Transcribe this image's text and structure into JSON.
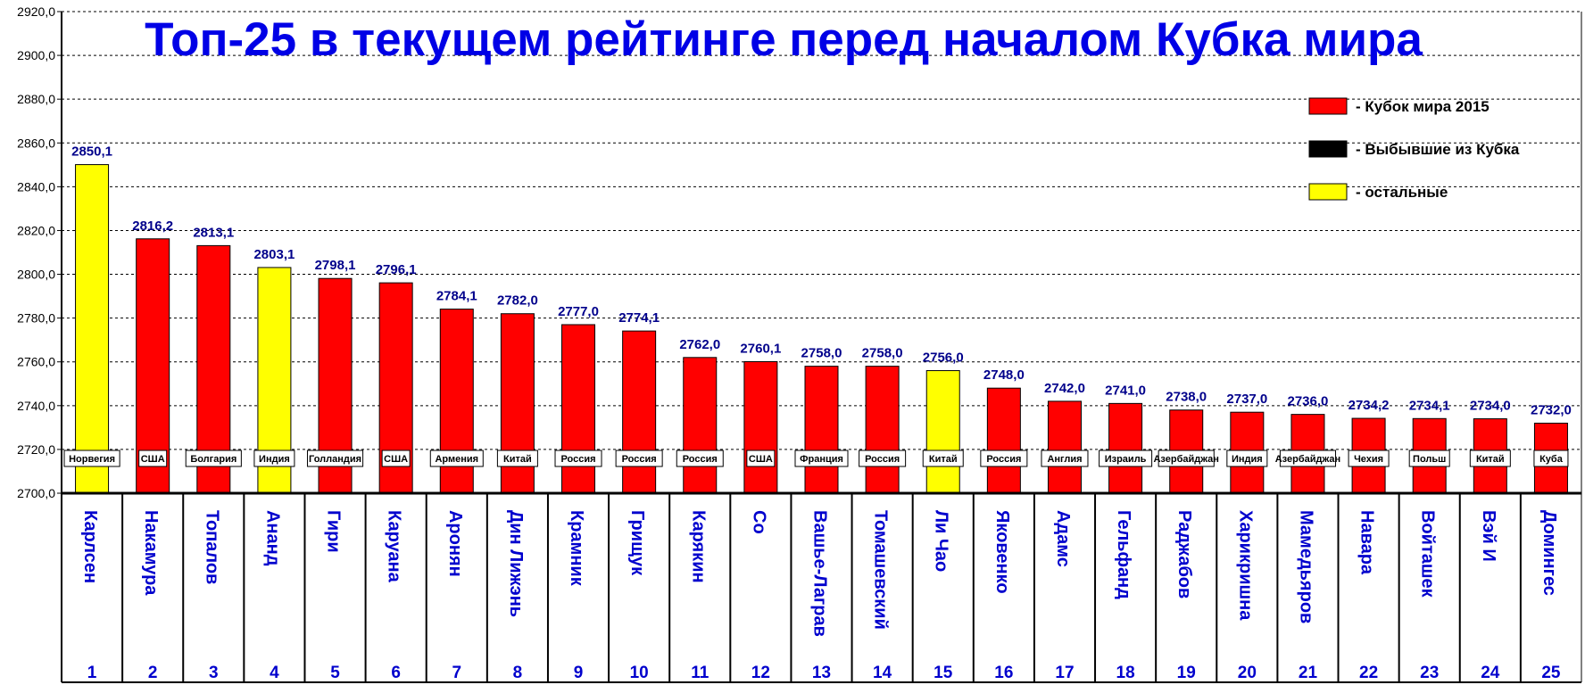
{
  "chart_data": {
    "type": "bar",
    "title": "Топ-25 в текущем рейтинге перед началом Кубка мира",
    "ylim": [
      2700,
      2920
    ],
    "ytick_step": 20,
    "y_ticks": [
      "2700,0",
      "2720,0",
      "2740,0",
      "2760,0",
      "2780,0",
      "2800,0",
      "2820,0",
      "2840,0",
      "2860,0",
      "2880,0",
      "2900,0",
      "2920,0"
    ],
    "grid": true,
    "legend_position": "top-right",
    "legend": [
      {
        "label": "- Кубок мира 2015",
        "color": "#ff0000"
      },
      {
        "label": "- Выбывшие из Кубка",
        "color": "#000000"
      },
      {
        "label": "- остальные",
        "color": "#ffff00"
      }
    ],
    "bars": [
      {
        "rank": "1",
        "name": "Карлсен",
        "country": "Норвегия",
        "value": 2850.1,
        "label": "2850,1",
        "color": "#ffff00"
      },
      {
        "rank": "2",
        "name": "Накамура",
        "country": "США",
        "value": 2816.2,
        "label": "2816,2",
        "color": "#ff0000"
      },
      {
        "rank": "3",
        "name": "Топалов",
        "country": "Болгария",
        "value": 2813.1,
        "label": "2813,1",
        "color": "#ff0000"
      },
      {
        "rank": "4",
        "name": "Ананд",
        "country": "Индия",
        "value": 2803.1,
        "label": "2803,1",
        "color": "#ffff00"
      },
      {
        "rank": "5",
        "name": "Гири",
        "country": "Голландия",
        "value": 2798.1,
        "label": "2798,1",
        "color": "#ff0000"
      },
      {
        "rank": "6",
        "name": "Каруана",
        "country": "США",
        "value": 2796.1,
        "label": "2796,1",
        "color": "#ff0000"
      },
      {
        "rank": "7",
        "name": "Аронян",
        "country": "Армения",
        "value": 2784.1,
        "label": "2784,1",
        "color": "#ff0000"
      },
      {
        "rank": "8",
        "name": "Дин Лижэнь",
        "country": "Китай",
        "value": 2782.0,
        "label": "2782,0",
        "color": "#ff0000"
      },
      {
        "rank": "9",
        "name": "Крамник",
        "country": "Россия",
        "value": 2777.0,
        "label": "2777,0",
        "color": "#ff0000"
      },
      {
        "rank": "10",
        "name": "Грищук",
        "country": "Россия",
        "value": 2774.1,
        "label": "2774,1",
        "color": "#ff0000"
      },
      {
        "rank": "11",
        "name": "Карякин",
        "country": "Россия",
        "value": 2762.0,
        "label": "2762,0",
        "color": "#ff0000"
      },
      {
        "rank": "12",
        "name": "Со",
        "country": "США",
        "value": 2760.1,
        "label": "2760,1",
        "color": "#ff0000"
      },
      {
        "rank": "13",
        "name": "Вашье-Лаграв",
        "country": "Франция",
        "value": 2758.0,
        "label": "2758,0",
        "color": "#ff0000"
      },
      {
        "rank": "14",
        "name": "Томашевский",
        "country": "Россия",
        "value": 2758.0,
        "label": "2758,0",
        "color": "#ff0000"
      },
      {
        "rank": "15",
        "name": "Ли Чао",
        "country": "Китай",
        "value": 2756.0,
        "label": "2756,0",
        "color": "#ffff00"
      },
      {
        "rank": "16",
        "name": "Яковенко",
        "country": "Россия",
        "value": 2748.0,
        "label": "2748,0",
        "color": "#ff0000"
      },
      {
        "rank": "17",
        "name": "Адамс",
        "country": "Англия",
        "value": 2742.0,
        "label": "2742,0",
        "color": "#ff0000"
      },
      {
        "rank": "18",
        "name": "Гельфанд",
        "country": "Израиль",
        "value": 2741.0,
        "label": "2741,0",
        "color": "#ff0000"
      },
      {
        "rank": "19",
        "name": "Раджабов",
        "country": "Азербайджан",
        "value": 2738.0,
        "label": "2738,0",
        "color": "#ff0000"
      },
      {
        "rank": "20",
        "name": "Харикришна",
        "country": "Индия",
        "value": 2737.0,
        "label": "2737,0",
        "color": "#ff0000"
      },
      {
        "rank": "21",
        "name": "Мамедьяров",
        "country": "Азербайджан",
        "value": 2736.0,
        "label": "2736,0",
        "color": "#ff0000"
      },
      {
        "rank": "22",
        "name": "Навара",
        "country": "Чехия",
        "value": 2734.2,
        "label": "2734,2",
        "color": "#ff0000"
      },
      {
        "rank": "23",
        "name": "Войташек",
        "country": "Польш",
        "value": 2734.1,
        "label": "2734,1",
        "color": "#ff0000"
      },
      {
        "rank": "24",
        "name": "Вэй И",
        "country": "Китай",
        "value": 2734.0,
        "label": "2734,0",
        "color": "#ff0000"
      },
      {
        "rank": "25",
        "name": "Домингес",
        "country": "Куба",
        "value": 2732.0,
        "label": "2732,0",
        "color": "#ff0000"
      }
    ]
  }
}
